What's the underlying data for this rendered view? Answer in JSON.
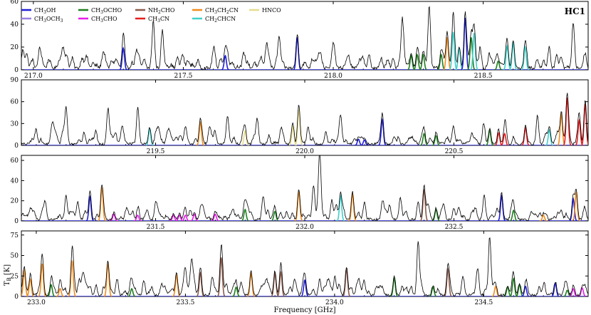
{
  "chart_data": {
    "type": "line",
    "label": "HC1",
    "xlabel": "Frequency [GHz]",
    "ylabel": "T",
    "ylabel_sub": "B",
    "ylabel_unit": " [K]",
    "legend_placement": "top-left",
    "legend": [
      {
        "name": "CH3OH",
        "base": "CH",
        "sub1": "3",
        "mid": "OH",
        "sub2": "",
        "tail": "",
        "color": "#1f1fd6"
      },
      {
        "name": "CH3OCH3",
        "base": "CH",
        "sub1": "3",
        "mid": "OCH",
        "sub2": "3",
        "tail": "",
        "color": "#9b7fe0"
      },
      {
        "name": "CH3OCHO",
        "base": "CH",
        "sub1": "3",
        "mid": "OCHO",
        "sub2": "",
        "tail": "",
        "color": "#1f7f1f"
      },
      {
        "name": "CH3CHO",
        "base": "CH",
        "sub1": "3",
        "mid": "CHO",
        "sub2": "",
        "tail": "",
        "color": "#e61ee6"
      },
      {
        "name": "NH2CHO",
        "base": "NH",
        "sub1": "2",
        "mid": "CHO",
        "sub2": "",
        "tail": "",
        "color": "#8b5a4a"
      },
      {
        "name": "CH3CN",
        "base": "CH",
        "sub1": "3",
        "mid": "CN",
        "sub2": "",
        "tail": "",
        "color": "#e61e1e"
      },
      {
        "name": "CH3CH2CN",
        "base": "CH",
        "sub1": "3",
        "mid": "CH",
        "sub2": "2",
        "tail": "CN",
        "color": "#f08c1e"
      },
      {
        "name": "CH2CHCN",
        "base": "CH",
        "sub1": "2",
        "mid": "CHCN",
        "sub2": "",
        "tail": "",
        "color": "#40d0c8"
      },
      {
        "name": "HNCO",
        "base": "HNCO",
        "sub1": "",
        "mid": "",
        "sub2": "",
        "tail": "",
        "color": "#e6dc8c"
      }
    ],
    "panels": [
      {
        "xlim": [
          216.96,
          218.85
        ],
        "ylim": [
          0,
          60
        ],
        "xticks": [
          217.0,
          217.5,
          218.0,
          218.5
        ],
        "xtick_labels": [
          "217.0",
          "217.5",
          "218.0",
          "218.5"
        ],
        "yticks": [
          0,
          20,
          40,
          60
        ],
        "ytick_labels": [
          "0",
          "20",
          "40",
          "60"
        ],
        "noise": 3,
        "dense": 2.5,
        "lines": [
          [
            216.965,
            16,
            "obs"
          ],
          [
            217.02,
            9,
            "obs"
          ],
          [
            217.05,
            5,
            "obs"
          ],
          [
            217.1,
            10,
            "obs"
          ],
          [
            217.13,
            9,
            "obs"
          ],
          [
            217.18,
            7,
            "obs"
          ],
          [
            217.24,
            6,
            "obs"
          ],
          [
            217.28,
            5,
            "obs"
          ],
          [
            217.3,
            20,
            "CH3OH"
          ],
          [
            217.37,
            8,
            "obs"
          ],
          [
            217.4,
            34,
            "obs"
          ],
          [
            217.43,
            33,
            "obs"
          ],
          [
            217.48,
            8,
            "obs"
          ],
          [
            217.55,
            6,
            "obs"
          ],
          [
            217.6,
            7,
            "obs"
          ],
          [
            217.64,
            13,
            "CH3OH"
          ],
          [
            217.7,
            7,
            "obs"
          ],
          [
            217.76,
            9,
            "obs"
          ],
          [
            217.82,
            27,
            "obs"
          ],
          [
            217.88,
            30,
            "CH3OH"
          ],
          [
            217.95,
            7,
            "obs"
          ],
          [
            218.0,
            11,
            "obs"
          ],
          [
            218.05,
            8,
            "obs"
          ],
          [
            218.1,
            6,
            "obs"
          ],
          [
            218.12,
            12,
            "obs"
          ],
          [
            218.16,
            9,
            "obs"
          ],
          [
            218.2,
            8,
            "obs"
          ],
          [
            218.23,
            35,
            "obs"
          ],
          [
            218.26,
            13,
            "CH3OCHO"
          ],
          [
            218.28,
            14,
            "CH3OCHO"
          ],
          [
            218.3,
            14,
            "CH3OCHO"
          ],
          [
            218.32,
            56,
            "obs"
          ],
          [
            218.36,
            14,
            "CH3OCHO"
          ],
          [
            218.38,
            30,
            "CH3CH2CN"
          ],
          [
            218.4,
            35,
            "CH2CHCN"
          ],
          [
            218.42,
            20,
            "CH2CHCN"
          ],
          [
            218.44,
            48,
            "CH3OH"
          ],
          [
            218.46,
            30,
            "CH3OCHO"
          ],
          [
            218.47,
            34,
            "CH2CHCN"
          ],
          [
            218.49,
            18,
            "obs"
          ],
          [
            218.52,
            10,
            "obs"
          ],
          [
            218.55,
            8,
            "CH3OCHO"
          ],
          [
            218.58,
            22,
            "CH2CHCN"
          ],
          [
            218.6,
            25,
            "CH2CHCN"
          ],
          [
            218.64,
            21,
            "CH2CHCN"
          ],
          [
            218.68,
            8,
            "obs"
          ],
          [
            218.72,
            18,
            "obs"
          ],
          [
            218.76,
            10,
            "obs"
          ],
          [
            218.8,
            33,
            "obs"
          ],
          [
            218.84,
            10,
            "obs"
          ]
        ]
      },
      {
        "xlim": [
          219.05,
          220.95
        ],
        "ylim": [
          0,
          90
        ],
        "xticks": [
          219.5,
          220.0,
          220.5
        ],
        "xtick_labels": [
          "219.5",
          "220.0",
          "220.5"
        ],
        "yticks": [
          0,
          30,
          60,
          90
        ],
        "ytick_labels": [
          "0",
          "30",
          "60",
          "90"
        ],
        "noise": 3.5,
        "dense": 3,
        "lines": [
          [
            219.1,
            12,
            "obs"
          ],
          [
            219.15,
            11,
            "obs"
          ],
          [
            219.2,
            50,
            "obs"
          ],
          [
            219.26,
            17,
            "obs"
          ],
          [
            219.3,
            14,
            "obs"
          ],
          [
            219.34,
            47,
            "obs"
          ],
          [
            219.39,
            12,
            "obs"
          ],
          [
            219.44,
            48,
            "obs"
          ],
          [
            219.48,
            24,
            "CH2CHCN"
          ],
          [
            219.55,
            10,
            "obs"
          ],
          [
            219.6,
            10,
            "obs"
          ],
          [
            219.65,
            33,
            "CH3CH2CN"
          ],
          [
            219.7,
            11,
            "obs"
          ],
          [
            219.74,
            28,
            "obs"
          ],
          [
            219.8,
            21,
            "HNCO"
          ],
          [
            219.84,
            23,
            "obs"
          ],
          [
            219.88,
            12,
            "obs"
          ],
          [
            219.92,
            21,
            "obs"
          ],
          [
            219.96,
            27,
            "HNCO"
          ],
          [
            219.98,
            52,
            "HNCO"
          ],
          [
            220.01,
            16,
            "obs"
          ],
          [
            220.07,
            14,
            "obs"
          ],
          [
            220.12,
            35,
            "obs"
          ],
          [
            220.18,
            9,
            "CH3OH"
          ],
          [
            220.2,
            8,
            "CH3OH"
          ],
          [
            220.26,
            37,
            "CH3OH"
          ],
          [
            220.3,
            10,
            "obs"
          ],
          [
            220.36,
            9,
            "obs"
          ],
          [
            220.4,
            17,
            "CH3OCHO"
          ],
          [
            220.44,
            14,
            "CH3OCHO"
          ],
          [
            220.5,
            9,
            "obs"
          ],
          [
            220.56,
            12,
            "obs"
          ],
          [
            220.6,
            30,
            "obs"
          ],
          [
            220.62,
            22,
            "CH3OCHO"
          ],
          [
            220.65,
            18,
            "CH3CN"
          ],
          [
            220.67,
            17,
            "CH3CN"
          ],
          [
            220.7,
            10,
            "obs"
          ],
          [
            220.74,
            25,
            "CH3CN"
          ],
          [
            220.78,
            36,
            "obs"
          ],
          [
            220.82,
            22,
            "CH2CHCN"
          ],
          [
            220.86,
            45,
            "CH3CH2CN"
          ],
          [
            220.88,
            69,
            "CH3CN"
          ],
          [
            220.92,
            36,
            "CH3CN"
          ],
          [
            220.94,
            60,
            "CH3CN"
          ]
        ]
      },
      {
        "xlim": [
          231.05,
          232.95
        ],
        "ylim": [
          0,
          65
        ],
        "xticks": [
          231.5,
          232.0,
          232.5
        ],
        "xtick_labels": [
          "231.5",
          "232.0",
          "232.5"
        ],
        "yticks": [
          0,
          20,
          40,
          60
        ],
        "ytick_labels": [
          "0",
          "20",
          "40",
          "60"
        ],
        "noise": 2.5,
        "dense": 2.5,
        "lines": [
          [
            231.08,
            10,
            "obs"
          ],
          [
            231.12,
            8,
            "obs"
          ],
          [
            231.2,
            22,
            "obs"
          ],
          [
            231.24,
            13,
            "obs"
          ],
          [
            231.28,
            25,
            "CH3OH"
          ],
          [
            231.32,
            35,
            "CH3CH2CN"
          ],
          [
            231.36,
            7,
            "CH3CHO"
          ],
          [
            231.4,
            8,
            "obs"
          ],
          [
            231.44,
            6,
            "CH3CHO"
          ],
          [
            231.5,
            15,
            "obs"
          ],
          [
            231.56,
            6,
            "CH3CHO"
          ],
          [
            231.58,
            6,
            "CH3CHO"
          ],
          [
            231.6,
            6,
            "CH3CHO"
          ],
          [
            231.63,
            7,
            "CH3CHO"
          ],
          [
            231.66,
            10,
            "obs"
          ],
          [
            231.7,
            7,
            "CH3CHO"
          ],
          [
            231.76,
            9,
            "obs"
          ],
          [
            231.8,
            12,
            "CH3OCHO"
          ],
          [
            231.86,
            18,
            "obs"
          ],
          [
            231.9,
            10,
            "CH3OCHO"
          ],
          [
            231.94,
            8,
            "obs"
          ],
          [
            231.98,
            31,
            "CH3CH2CN"
          ],
          [
            232.03,
            30,
            "obs"
          ],
          [
            232.05,
            57,
            "obs"
          ],
          [
            232.09,
            16,
            "obs"
          ],
          [
            232.12,
            26,
            "CH2CHCN"
          ],
          [
            232.16,
            28,
            "CH3CH2CN"
          ],
          [
            232.2,
            18,
            "obs"
          ],
          [
            232.26,
            15,
            "obs"
          ],
          [
            232.32,
            15,
            "obs"
          ],
          [
            232.4,
            33,
            "NH2CHO"
          ],
          [
            232.44,
            12,
            "CH3OCHO"
          ],
          [
            232.5,
            12,
            "obs"
          ],
          [
            232.56,
            8,
            "obs"
          ],
          [
            232.6,
            11,
            "obs"
          ],
          [
            232.66,
            26,
            "CH3OH"
          ],
          [
            232.7,
            11,
            "CH3OCHO"
          ],
          [
            232.76,
            9,
            "obs"
          ],
          [
            232.8,
            6,
            "CH3CH2CN"
          ],
          [
            232.86,
            10,
            "obs"
          ],
          [
            232.9,
            23,
            "CH3OH"
          ],
          [
            232.91,
            29,
            "CH3CH2CN"
          ],
          [
            232.94,
            8,
            "obs"
          ]
        ]
      },
      {
        "xlim": [
          232.95,
          234.85
        ],
        "ylim": [
          0,
          80
        ],
        "xticks": [
          233.0,
          233.5,
          234.0,
          234.5
        ],
        "xtick_labels": [
          "233.0",
          "233.5",
          "234.0",
          "234.5"
        ],
        "yticks": [
          0,
          25,
          50,
          75
        ],
        "ytick_labels": [
          "0",
          "25",
          "50",
          "75"
        ],
        "noise": 3,
        "dense": 3.5,
        "lines": [
          [
            232.96,
            33,
            "CH3CH2CN"
          ],
          [
            232.98,
            22,
            "CH3CH2CN"
          ],
          [
            233.02,
            42,
            "CH3CH2CN"
          ],
          [
            233.05,
            15,
            "CH3OCHO"
          ],
          [
            233.08,
            10,
            "CH3CH2CN"
          ],
          [
            233.12,
            46,
            "CH3CH2CN"
          ],
          [
            233.16,
            12,
            "obs"
          ],
          [
            233.2,
            12,
            "obs"
          ],
          [
            233.24,
            42,
            "CH3CH2CN"
          ],
          [
            233.27,
            12,
            "obs"
          ],
          [
            233.32,
            10,
            "CH3OCHO"
          ],
          [
            233.36,
            12,
            "obs"
          ],
          [
            233.42,
            12,
            "obs"
          ],
          [
            233.47,
            27,
            "CH3CH2CN"
          ],
          [
            233.5,
            32,
            "obs"
          ],
          [
            233.52,
            37,
            "obs"
          ],
          [
            233.55,
            30,
            "NH2CHO"
          ],
          [
            233.59,
            22,
            "obs"
          ],
          [
            233.62,
            50,
            "NH2CHO"
          ],
          [
            233.67,
            12,
            "CH3OCHO"
          ],
          [
            233.72,
            30,
            "CH3CH2CN"
          ],
          [
            233.76,
            10,
            "obs"
          ],
          [
            233.8,
            30,
            "NH2CHO"
          ],
          [
            233.82,
            31,
            "NH2CHO"
          ],
          [
            233.85,
            10,
            "obs"
          ],
          [
            233.9,
            21,
            "CH3OH"
          ],
          [
            233.95,
            10,
            "obs"
          ],
          [
            234.0,
            12,
            "obs"
          ],
          [
            234.04,
            35,
            "NH2CHO"
          ],
          [
            234.1,
            14,
            "obs"
          ],
          [
            234.14,
            10,
            "obs"
          ],
          [
            234.2,
            23,
            "CH3OCHO"
          ],
          [
            234.24,
            10,
            "obs"
          ],
          [
            234.28,
            64,
            "obs"
          ],
          [
            234.33,
            12,
            "CH3OCHO"
          ],
          [
            234.38,
            35,
            "NH2CHO"
          ],
          [
            234.43,
            12,
            "obs"
          ],
          [
            234.48,
            15,
            "obs"
          ],
          [
            234.52,
            72,
            "obs"
          ],
          [
            234.54,
            13,
            "CH3CH2CN"
          ],
          [
            234.58,
            12,
            "CH3OCHO"
          ],
          [
            234.6,
            23,
            "CH3OCHO"
          ],
          [
            234.62,
            15,
            "CH3OCHO"
          ],
          [
            234.64,
            13,
            "CH3OH"
          ],
          [
            234.7,
            9,
            "obs"
          ],
          [
            234.74,
            17,
            "CH3OH"
          ],
          [
            234.78,
            8,
            "CH3OCHO"
          ],
          [
            234.8,
            10,
            "CH3CHO"
          ],
          [
            234.83,
            11,
            "CH3CHO"
          ]
        ]
      }
    ]
  }
}
